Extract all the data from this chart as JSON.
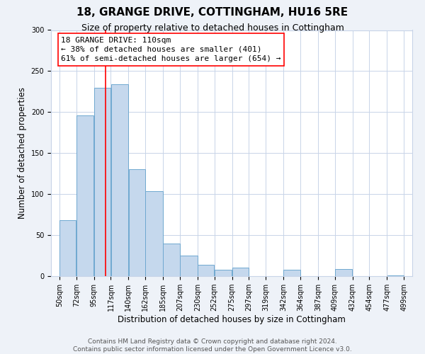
{
  "title": "18, GRANGE DRIVE, COTTINGHAM, HU16 5RE",
  "subtitle": "Size of property relative to detached houses in Cottingham",
  "xlabel": "Distribution of detached houses by size in Cottingham",
  "ylabel": "Number of detached properties",
  "bar_left_edges": [
    50,
    72,
    95,
    117,
    140,
    162,
    185,
    207,
    230,
    252,
    275,
    297,
    319,
    342,
    364,
    387,
    409,
    432,
    454,
    477
  ],
  "bar_widths": [
    22,
    23,
    22,
    23,
    22,
    23,
    22,
    23,
    22,
    23,
    22,
    22,
    23,
    22,
    23,
    22,
    23,
    22,
    23,
    22
  ],
  "bar_heights": [
    68,
    196,
    230,
    234,
    130,
    104,
    40,
    25,
    14,
    8,
    10,
    0,
    0,
    8,
    0,
    0,
    9,
    0,
    0,
    1
  ],
  "bar_color": "#c5d8ed",
  "bar_edge_color": "#6fa8d0",
  "tick_labels": [
    "50sqm",
    "72sqm",
    "95sqm",
    "117sqm",
    "140sqm",
    "162sqm",
    "185sqm",
    "207sqm",
    "230sqm",
    "252sqm",
    "275sqm",
    "297sqm",
    "319sqm",
    "342sqm",
    "364sqm",
    "387sqm",
    "409sqm",
    "432sqm",
    "454sqm",
    "477sqm",
    "499sqm"
  ],
  "tick_positions": [
    50,
    72,
    95,
    117,
    140,
    162,
    185,
    207,
    230,
    252,
    275,
    297,
    319,
    342,
    364,
    387,
    409,
    432,
    454,
    477,
    499
  ],
  "ylim": [
    0,
    300
  ],
  "xlim": [
    39,
    510
  ],
  "vline_x": 110,
  "annotation_text": "18 GRANGE DRIVE: 110sqm\n← 38% of detached houses are smaller (401)\n61% of semi-detached houses are larger (654) →",
  "footer_line1": "Contains HM Land Registry data © Crown copyright and database right 2024.",
  "footer_line2": "Contains public sector information licensed under the Open Government Licence v3.0.",
  "bg_color": "#eef2f8",
  "plot_bg_color": "#ffffff",
  "grid_color": "#c8d4e8",
  "title_fontsize": 11,
  "subtitle_fontsize": 9,
  "axis_label_fontsize": 8.5,
  "tick_fontsize": 7,
  "annotation_fontsize": 8,
  "footer_fontsize": 6.5,
  "yticks": [
    0,
    50,
    100,
    150,
    200,
    250,
    300
  ]
}
